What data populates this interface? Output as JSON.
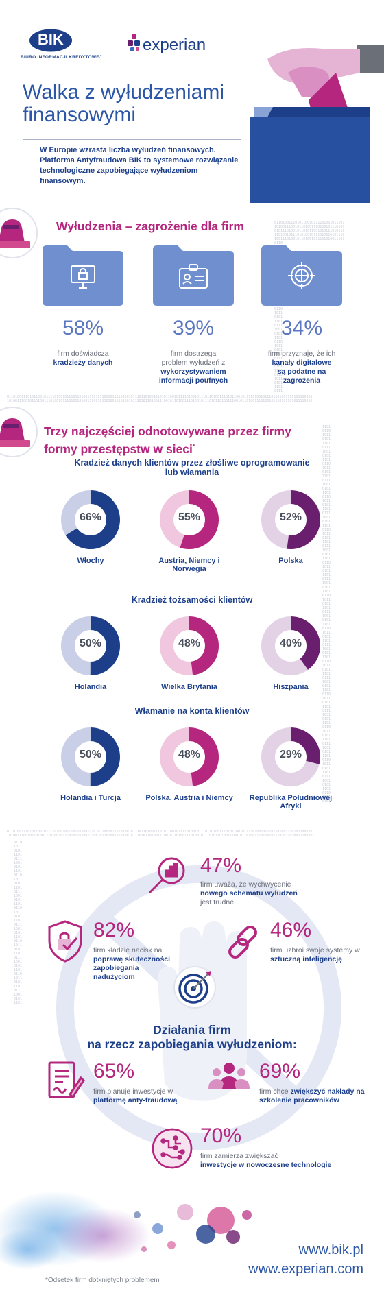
{
  "header": {
    "bik_logo": "BIK",
    "bik_subtitle": "BIURO INFORMACJI KREDYTOWEJ",
    "experian_logo": "experian",
    "title_line1": "Walka z wyłudzeniami",
    "title_line2": "finansowymi",
    "intro": "W Europie wzrasta liczba wyłudzeń finansowych. Platforma Antyfraudowa BIK to systemowe rozwiązanie technologiczne zapobiegające wyłudzeniom finansowym."
  },
  "section1": {
    "title": "Wyłudzenia – zagrożenie dla firm",
    "stats": [
      {
        "value": "58%",
        "icon": "monitor-lock-icon",
        "text_pre": "firm doświadcza",
        "text_bold": "kradzieży danych",
        "text_bold2": ""
      },
      {
        "value": "39%",
        "icon": "id-card-icon",
        "text_pre": "firm dostrzega problem wyłudzeń z",
        "text_bold": "wykorzystywaniem",
        "text_bold2": "informacji poufnych"
      },
      {
        "value": "34%",
        "icon": "globe-target-icon",
        "text_pre": "firm przyznaje, że ich",
        "text_bold": "kanały digitalowe",
        "text_bold2": "są podatne na zagrożenia"
      }
    ]
  },
  "section2": {
    "title_line1": "Trzy najczęściej odnotowywane przez firmy",
    "title_line2": "formy przestępstw w sieci",
    "footnote_mark": "*",
    "groups": [
      {
        "heading": "Kradzież danych klientów przez złośliwe oprogramowanie",
        "heading2": "lub włamania",
        "items": [
          {
            "label": "66%",
            "value": 66,
            "color": "#1d3f8a",
            "track": "#c9cfe6",
            "country": "Włochy"
          },
          {
            "label": "55%",
            "value": 55,
            "color": "#b5267e",
            "track": "#f0c7df",
            "country": "Austria, Niemcy i Norwegia"
          },
          {
            "label": "52%",
            "value": 52,
            "color": "#6a1f6e",
            "track": "#e3d2e6",
            "country": "Polska"
          }
        ]
      },
      {
        "heading": "Kradzież tożsamości klientów",
        "heading2": "",
        "items": [
          {
            "label": "50%",
            "value": 50,
            "color": "#1d3f8a",
            "track": "#c9cfe6",
            "country": "Holandia"
          },
          {
            "label": "48%",
            "value": 48,
            "color": "#b5267e",
            "track": "#f0c7df",
            "country": "Wielka Brytania"
          },
          {
            "label": "40%",
            "value": 40,
            "color": "#6a1f6e",
            "track": "#e3d2e6",
            "country": "Hiszpania"
          }
        ]
      },
      {
        "heading": "Włamanie na konta klientów",
        "heading2": "",
        "items": [
          {
            "label": "50%",
            "value": 50,
            "color": "#1d3f8a",
            "track": "#c9cfe6",
            "country": "Holandia i Turcja"
          },
          {
            "label": "48%",
            "value": 48,
            "color": "#b5267e",
            "track": "#f0c7df",
            "country": "Polska, Austria i Niemcy"
          },
          {
            "label": "29%",
            "value": 29,
            "color": "#6a1f6e",
            "track": "#e3d2e6",
            "country": "Republika Południowej Afryki"
          }
        ]
      }
    ]
  },
  "section3": {
    "title_line1": "Działania firm",
    "title_line2": "na rzecz zapobiegania wyłudzeniom:",
    "actions": [
      {
        "value": "47%",
        "icon": "magnifier-chart-icon",
        "text_pre": "firm uważa, że wychwycenie",
        "text_bold": "nowego schematu wyłudzeń",
        "text_post": "jest trudne"
      },
      {
        "value": "82%",
        "icon": "shield-check-icon",
        "text_pre": "firm kładzie nacisk na",
        "text_bold": "poprawę skuteczności zapobiegania nadużyciom",
        "text_post": ""
      },
      {
        "value": "46%",
        "icon": "chain-link-icon",
        "text_pre": "firm uzbroi swoje systemy w",
        "text_bold": "sztuczną inteligencję",
        "text_post": ""
      },
      {
        "value": "65%",
        "icon": "document-pen-icon",
        "text_pre": "firm planuje inwestycje w",
        "text_bold": "platformę anty-fraudową",
        "text_post": ""
      },
      {
        "value": "69%",
        "icon": "people-group-icon",
        "text_pre": "firm chce",
        "text_bold": "zwiększyć nakłady na szkolenie pracowników",
        "text_post": ""
      },
      {
        "value": "70%",
        "icon": "circuit-icon",
        "text_pre": "firm zamierza zwiększać",
        "text_bold": "inwestycje w nowoczesne technologie",
        "text_post": ""
      }
    ]
  },
  "footer": {
    "footnote": "*Odsetek firm dotkniętych problemem",
    "url1": "www.bik.pl",
    "url2": "www.experian.com"
  },
  "colors": {
    "navy": "#1d3f8a",
    "magenta": "#b5267e",
    "purple": "#6a1f6e",
    "folder": "#6f8fcf"
  }
}
